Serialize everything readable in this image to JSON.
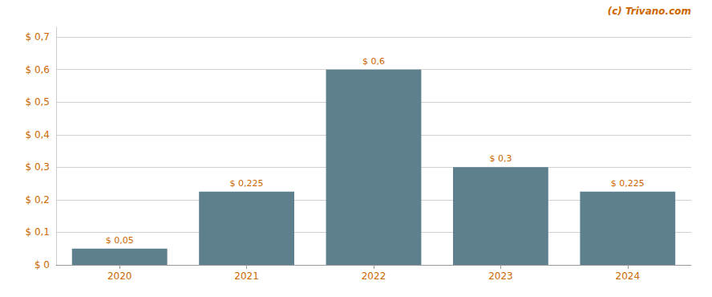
{
  "chart_data": {
    "type": "bar",
    "categories": [
      "2020",
      "2021",
      "2022",
      "2023",
      "2024"
    ],
    "values": [
      0.05,
      0.225,
      0.6,
      0.3,
      0.225
    ],
    "value_labels": [
      "$ 0,05",
      "$ 0,225",
      "$ 0,6",
      "$ 0,3",
      "$ 0,225"
    ],
    "data_labels": true,
    "color": "#5d7f8e",
    "ylim": [
      0,
      0.73
    ],
    "yticks": [
      {
        "value": 0.0,
        "label": "$ 0"
      },
      {
        "value": 0.1,
        "label": "$ 0,1"
      },
      {
        "value": 0.2,
        "label": "$ 0,2"
      },
      {
        "value": 0.3,
        "label": "$ 0,3"
      },
      {
        "value": 0.4,
        "label": "$ 0,4"
      },
      {
        "value": 0.5,
        "label": "$ 0,5"
      },
      {
        "value": 0.6,
        "label": "$ 0,6"
      },
      {
        "value": 0.7,
        "label": "$ 0,7"
      }
    ],
    "grid": true,
    "annotations": [
      "(c) Trivano.com"
    ]
  }
}
